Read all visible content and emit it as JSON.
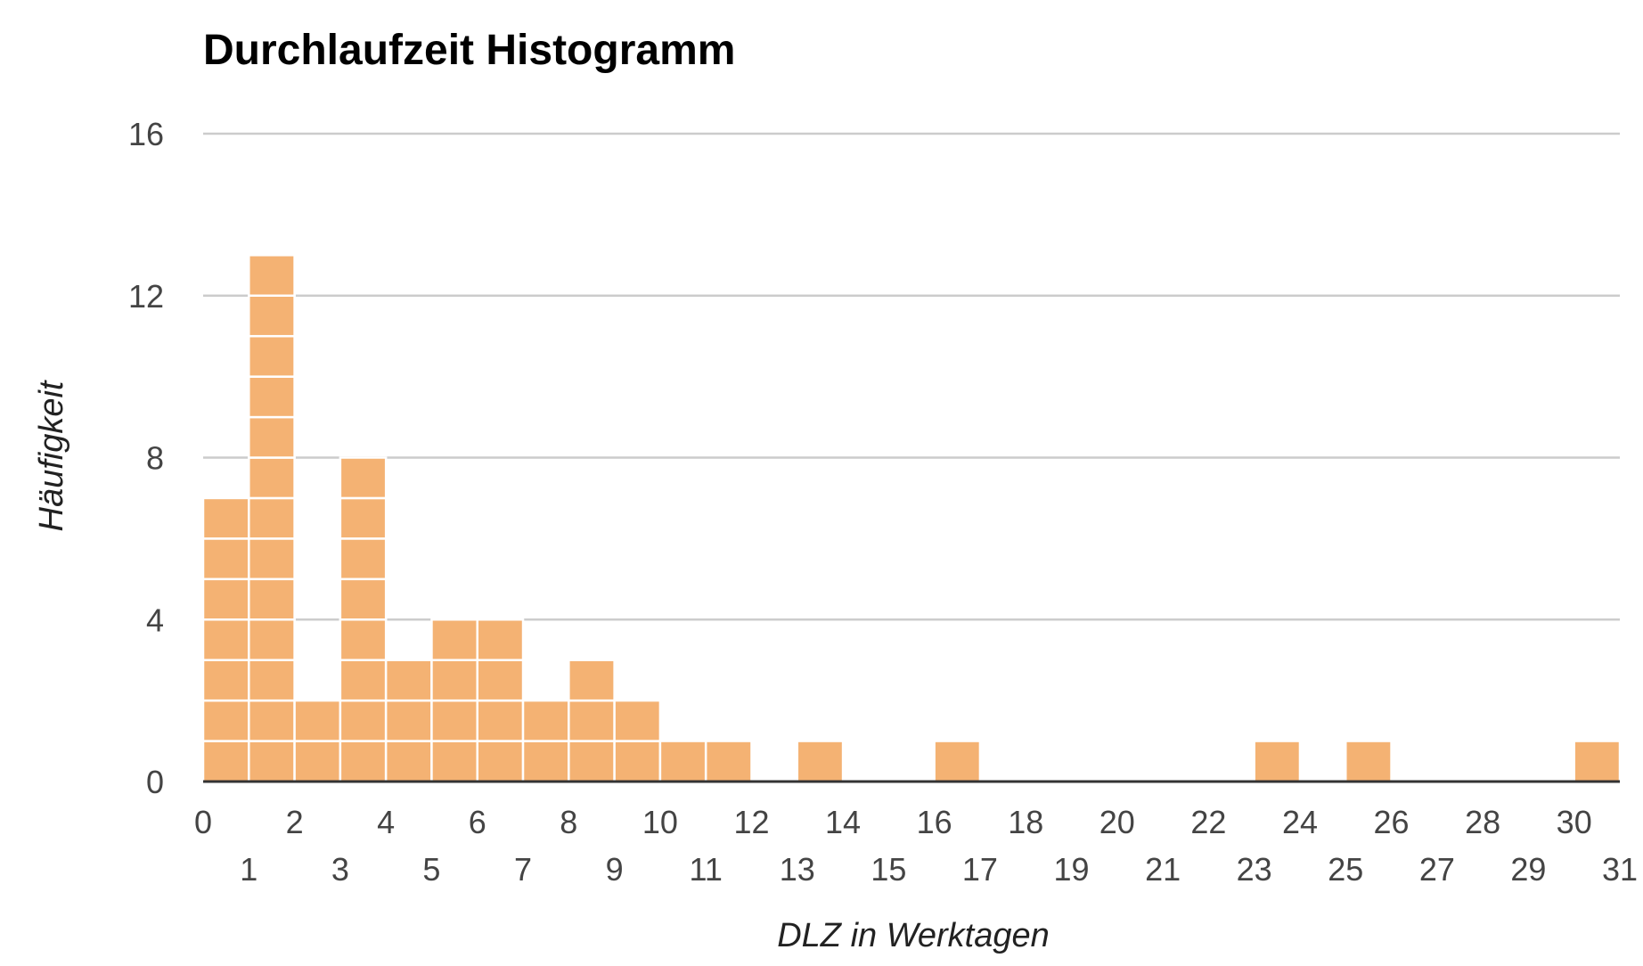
{
  "chart_data": {
    "type": "bar",
    "title": "Durchlaufzeit Histogramm",
    "xlabel": "DLZ in Werktagen",
    "ylabel": "Häufigkeit",
    "bin_width": 1,
    "x_bins_start": [
      0,
      1,
      2,
      3,
      4,
      5,
      6,
      7,
      8,
      9,
      10,
      11,
      12,
      13,
      14,
      15,
      16,
      17,
      18,
      19,
      20,
      21,
      22,
      23,
      24,
      25,
      26,
      27,
      28,
      29,
      30
    ],
    "values": [
      7,
      13,
      2,
      8,
      3,
      4,
      4,
      2,
      3,
      2,
      1,
      1,
      0,
      1,
      0,
      0,
      1,
      0,
      0,
      0,
      0,
      0,
      0,
      1,
      0,
      1,
      0,
      0,
      0,
      0,
      1
    ],
    "xlim": [
      0,
      31
    ],
    "ylim": [
      0,
      16
    ],
    "y_ticks": [
      "0",
      "4",
      "8",
      "12",
      "16"
    ],
    "x_ticks_even": [
      "0",
      "2",
      "4",
      "6",
      "8",
      "10",
      "12",
      "14",
      "16",
      "18",
      "20",
      "22",
      "24",
      "26",
      "28",
      "30"
    ],
    "x_ticks_odd": [
      "1",
      "3",
      "5",
      "7",
      "9",
      "11",
      "13",
      "15",
      "17",
      "19",
      "21",
      "23",
      "25",
      "27",
      "29",
      "31"
    ],
    "grid": true,
    "legend": "none",
    "bar_color": "#f4b273"
  }
}
